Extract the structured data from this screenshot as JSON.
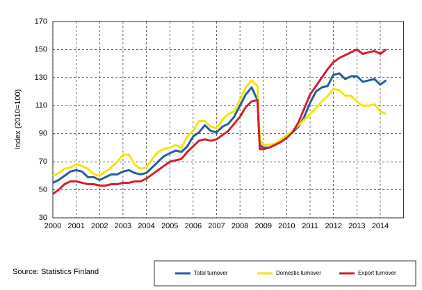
{
  "chart_data": {
    "type": "line",
    "y_label": "Index (2010=100)",
    "source": "Source: Statistics Finland",
    "x": [
      2000,
      2000.25,
      2000.5,
      2000.75,
      2001,
      2001.25,
      2001.5,
      2001.75,
      2002,
      2002.25,
      2002.5,
      2002.75,
      2003,
      2003.25,
      2003.5,
      2003.75,
      2004,
      2004.25,
      2004.5,
      2004.75,
      2005,
      2005.25,
      2005.5,
      2005.75,
      2006,
      2006.25,
      2006.5,
      2006.75,
      2007,
      2007.25,
      2007.5,
      2007.75,
      2008,
      2008.25,
      2008.5,
      2008.75,
      2008.85,
      2009,
      2009.25,
      2009.5,
      2009.75,
      2010,
      2010.25,
      2010.5,
      2010.75,
      2011,
      2011.25,
      2011.5,
      2011.75,
      2012,
      2012.25,
      2012.5,
      2012.75,
      2013,
      2013.25,
      2013.5,
      2013.75,
      2014,
      2014.25
    ],
    "series": [
      {
        "name": "Total turnover",
        "color": "#1f5fa0",
        "values": [
          55,
          57,
          60,
          63,
          64,
          63,
          59,
          59,
          57,
          59,
          61,
          61,
          63,
          64,
          62,
          61,
          62,
          66,
          70,
          74,
          76,
          78,
          77,
          81,
          88,
          91,
          96,
          92,
          91,
          95,
          97,
          102,
          110,
          118,
          123,
          114,
          82,
          80,
          80,
          82,
          85,
          88,
          91,
          95,
          102,
          112,
          120,
          123,
          124,
          132,
          133,
          129,
          131,
          131,
          127,
          128,
          129,
          125,
          128
        ]
      },
      {
        "name": "Domestic turnover",
        "color": "#f5e40a",
        "values": [
          60,
          62,
          65,
          66,
          68,
          67,
          65,
          61,
          60,
          63,
          66,
          70,
          75,
          75,
          68,
          65,
          66,
          72,
          77,
          79,
          80,
          82,
          80,
          88,
          92,
          99,
          99,
          95,
          94,
          100,
          104,
          106,
          114,
          123,
          128,
          124,
          86,
          82,
          82,
          83,
          86,
          89,
          92,
          96,
          100,
          104,
          108,
          113,
          117,
          122,
          121,
          117,
          117,
          113,
          110,
          110,
          111,
          106,
          104
        ]
      },
      {
        "name": "Export turnover",
        "color": "#d0202e",
        "values": [
          47,
          50,
          54,
          56,
          56,
          55,
          54,
          54,
          53,
          53,
          54,
          54,
          55,
          55,
          56,
          56,
          58,
          61,
          64,
          67,
          70,
          71,
          72,
          77,
          81,
          85,
          86,
          85,
          86,
          89,
          92,
          97,
          102,
          109,
          113,
          114,
          79,
          79,
          80,
          82,
          84,
          87,
          91,
          98,
          108,
          118,
          124,
          130,
          136,
          141,
          144,
          146,
          148,
          150,
          147,
          148,
          149,
          147,
          150
        ]
      }
    ],
    "xlim": [
      2000,
      2015
    ],
    "xticks": [
      2000,
      2001,
      2002,
      2003,
      2004,
      2005,
      2006,
      2007,
      2008,
      2009,
      2010,
      2011,
      2012,
      2013,
      2014
    ],
    "ylim": [
      30,
      170
    ],
    "yticks": [
      30,
      50,
      70,
      90,
      110,
      130,
      150,
      170
    ],
    "grid": true
  }
}
